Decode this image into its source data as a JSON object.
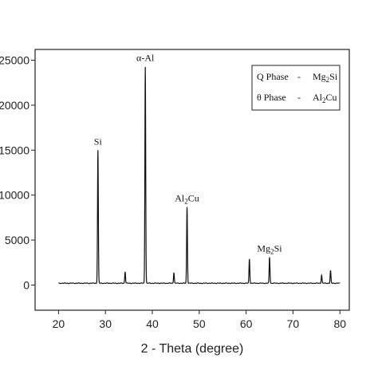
{
  "chart_data": {
    "type": "line",
    "title": "",
    "xlabel": "2 - Theta (degree)",
    "ylabel": "",
    "xlim": [
      15,
      82
    ],
    "ylim": [
      -2800,
      26200
    ],
    "x_ticks": [
      20,
      30,
      40,
      50,
      60,
      70,
      80
    ],
    "y_ticks": [
      {
        "value": 0,
        "label": "0"
      },
      {
        "value": 5000,
        "label": "5000"
      },
      {
        "value": 10000,
        "label": "10000"
      },
      {
        "value": 15000,
        "label": "15000"
      },
      {
        "value": 20000,
        "label": "20000"
      },
      {
        "value": 25000,
        "label": "25000"
      }
    ],
    "baseline": 200,
    "x_range": [
      20,
      80
    ],
    "peaks": [
      {
        "x": 28.4,
        "y": 15000
      },
      {
        "x": 34.2,
        "y": 1500
      },
      {
        "x": 38.5,
        "y": 24300
      },
      {
        "x": 44.6,
        "y": 1400
      },
      {
        "x": 47.4,
        "y": 8700
      },
      {
        "x": 60.7,
        "y": 2900
      },
      {
        "x": 65.0,
        "y": 3100
      },
      {
        "x": 76.1,
        "y": 1100
      },
      {
        "x": 78.0,
        "y": 1600
      }
    ],
    "annotations": [
      {
        "x": 28.4,
        "y": 15000,
        "text": "Si",
        "sub": "",
        "tail": ""
      },
      {
        "x": 38.5,
        "y": 24300,
        "text": "α-Al",
        "sub": "",
        "tail": ""
      },
      {
        "x": 47.4,
        "y": 8700,
        "text": "Al",
        "sub": "2",
        "tail": "Cu"
      },
      {
        "x": 65.0,
        "y": 3100,
        "text": "Mg",
        "sub": "2",
        "tail": "Si"
      }
    ],
    "legend": {
      "placement": "top-right",
      "entries": [
        {
          "label": "Q Phase",
          "dash": "-",
          "formula": "Mg",
          "sub": "2",
          "tail": "Si"
        },
        {
          "label": "θ Phase",
          "dash": "-",
          "formula": "Al",
          "sub": "2",
          "tail": "Cu"
        }
      ]
    },
    "grid": false,
    "colors": {
      "line": "#111111",
      "axes": "#222222"
    }
  }
}
